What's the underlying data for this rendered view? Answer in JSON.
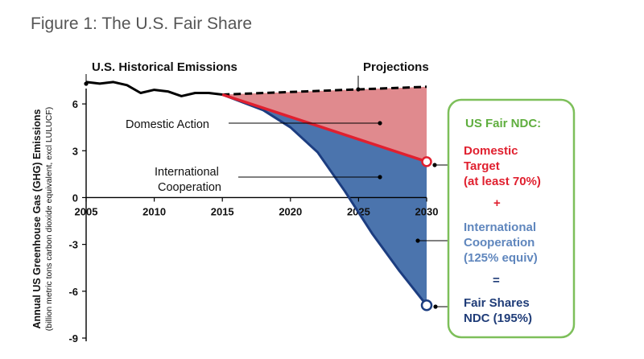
{
  "figure_title": "Figure 1: The U.S. Fair Share",
  "chart_data": {
    "type": "area",
    "title": "Figure 1: The U.S. Fair Share",
    "ylabel": "Annual US Greenhouse Gas (GHG) Emissions",
    "ylabel_sub": "(billion metric tons carbon dioxide equivalent, excl LULUCF)",
    "xlim": [
      2005,
      2030
    ],
    "ylim": [
      -9,
      7.5
    ],
    "x_ticks": [
      2005,
      2010,
      2015,
      2020,
      2025,
      2030
    ],
    "y_ticks": [
      6,
      3,
      0,
      -3,
      -6,
      -9
    ],
    "grid": false,
    "colors": {
      "historical": "#000000",
      "domestic_fill": "#e08a8e",
      "domestic_line": "#e0202f",
      "international_fill": "#4b74ad",
      "international_line": "#1c3d80",
      "ndc_box_border": "#7dbf5a",
      "ndc_title": "#5fae3e",
      "ndc_domestic": "#e0202f",
      "ndc_international": "#5f86bd",
      "ndc_fair": "#1f3c78"
    },
    "series": [
      {
        "key": "historical",
        "name": "U.S. Historical Emissions",
        "x": [
          2005,
          2006,
          2007,
          2008,
          2009,
          2010,
          2011,
          2012,
          2013,
          2014,
          2015
        ],
        "y": [
          7.4,
          7.3,
          7.4,
          7.2,
          6.7,
          6.9,
          6.8,
          6.5,
          6.7,
          6.7,
          6.6
        ]
      },
      {
        "key": "projections",
        "name": "Projections",
        "x": [
          2015,
          2030
        ],
        "y": [
          6.6,
          7.1
        ]
      },
      {
        "key": "domestic",
        "name": "Domestic Action",
        "x": [
          2015,
          2030
        ],
        "y": [
          6.6,
          2.3
        ]
      },
      {
        "key": "international",
        "name": "International Cooperation",
        "x": [
          2015,
          2018,
          2020,
          2022,
          2024,
          2026,
          2028,
          2030
        ],
        "y": [
          6.6,
          5.6,
          4.5,
          2.9,
          0.4,
          -2.3,
          -4.7,
          -6.9
        ]
      }
    ],
    "annotations": {
      "historical_label": "U.S. Historical Emissions",
      "projections_label": "Projections",
      "domestic_label": "Domestic Action",
      "international_label_1": "International",
      "international_label_2": "Cooperation"
    }
  },
  "ndc_box": {
    "title": "US Fair NDC:",
    "domestic_lines": [
      "Domestic",
      "Target",
      "(at least 70%)"
    ],
    "plus": "+",
    "international_lines": [
      "International",
      "Cooperation",
      "(125% equiv)"
    ],
    "equals": "=",
    "fair_lines": [
      "Fair Shares",
      "NDC (195%)"
    ]
  }
}
